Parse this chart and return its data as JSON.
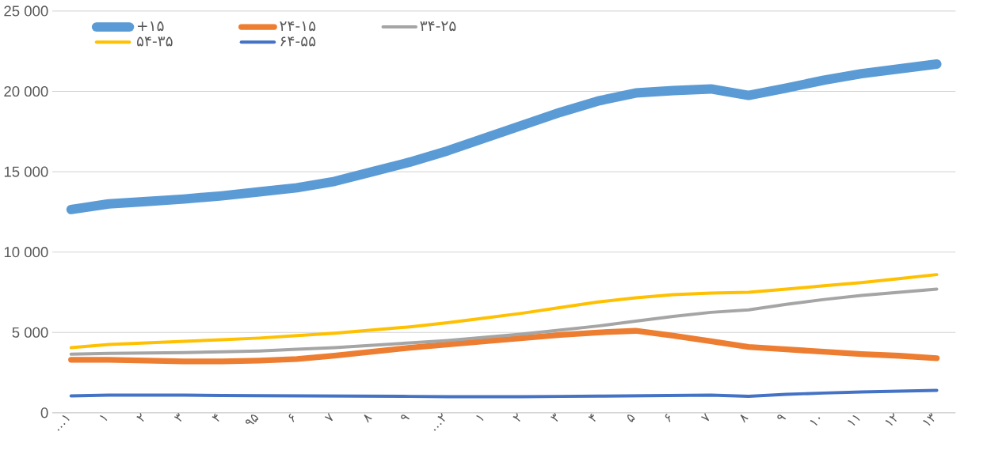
{
  "chart_data": {
    "type": "line",
    "categories": [
      "…۱",
      "۱",
      "۲",
      "۳",
      "۴",
      "۹۵",
      "۶",
      "۷",
      "۸",
      "۹",
      "…۲",
      "۱",
      "۲",
      "۳",
      "۴",
      "۵",
      "۶",
      "۷",
      "۸",
      "۹",
      "۱۰",
      "۱۱",
      "۱۲",
      "۱۳"
    ],
    "series": [
      {
        "name": "+۱۵",
        "color": "#5b9bd5",
        "values": [
          12650,
          13000,
          13150,
          13300,
          13500,
          13750,
          14000,
          14400,
          15000,
          15600,
          16300,
          17100,
          17900,
          18700,
          19400,
          19900,
          20050,
          20150,
          19750,
          20200,
          20700,
          21100,
          21400,
          21700
        ]
      },
      {
        "name": "۲۴-۱۵",
        "color": "#ed7d31",
        "values": [
          3300,
          3300,
          3250,
          3200,
          3200,
          3250,
          3350,
          3550,
          3800,
          4050,
          4250,
          4450,
          4650,
          4850,
          5000,
          5100,
          4800,
          4450,
          4100,
          3950,
          3800,
          3650,
          3550,
          3400
        ]
      },
      {
        "name": "۳۴-۲۵",
        "color": "#a5a5a5",
        "values": [
          3650,
          3700,
          3720,
          3750,
          3800,
          3850,
          3950,
          4050,
          4200,
          4350,
          4500,
          4700,
          4900,
          5150,
          5400,
          5700,
          6000,
          6250,
          6400,
          6750,
          7050,
          7300,
          7500,
          7700
        ]
      },
      {
        "name": "۵۴-۳۵",
        "color": "#ffc000",
        "values": [
          4050,
          4250,
          4350,
          4450,
          4550,
          4650,
          4800,
          4950,
          5150,
          5350,
          5600,
          5900,
          6200,
          6550,
          6900,
          7150,
          7350,
          7450,
          7500,
          7700,
          7900,
          8100,
          8350,
          8600
        ]
      },
      {
        "name": "۶۴-۵۵",
        "color": "#4472c4",
        "values": [
          1050,
          1100,
          1100,
          1100,
          1080,
          1060,
          1050,
          1040,
          1030,
          1020,
          1000,
          1000,
          1000,
          1020,
          1040,
          1060,
          1080,
          1100,
          1030,
          1150,
          1230,
          1300,
          1350,
          1400
        ]
      }
    ],
    "ylim": [
      0,
      25000
    ],
    "yticks": [
      {
        "value": 0,
        "label": "0"
      },
      {
        "value": 5000,
        "label": "5 000"
      },
      {
        "value": 10000,
        "label": "10 000"
      },
      {
        "value": 15000,
        "label": "15 000"
      },
      {
        "value": 20000,
        "label": "20 000"
      },
      {
        "value": 25000,
        "label": "25 000"
      }
    ],
    "grid": "y",
    "legend": "top left",
    "marker": "none",
    "line_style": "solid"
  }
}
